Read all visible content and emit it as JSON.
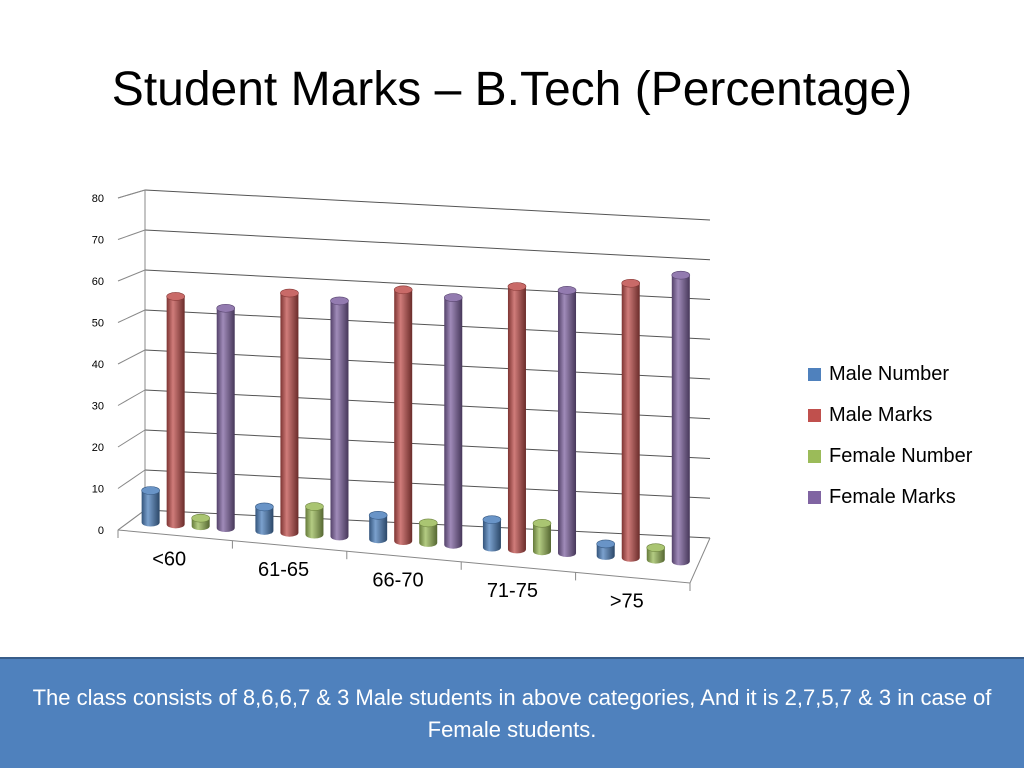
{
  "slide": {
    "title": "Student Marks – B.Tech (Percentage)",
    "caption": "The class consists of 8,6,6,7 & 3 Male students in above categories, And it is 2,7,5,7 & 3 in case of Female students."
  },
  "chart_data": {
    "type": "bar",
    "categories": [
      "<60",
      "61-65",
      "66-70",
      "71-75",
      ">75"
    ],
    "series": [
      {
        "name": "Male Number",
        "values": [
          8,
          6,
          6,
          7,
          3
        ],
        "color": "#4f81bd"
      },
      {
        "name": "Male Marks",
        "values": [
          57,
          60,
          63,
          66,
          69
        ],
        "color": "#c0504d"
      },
      {
        "name": "Female Number",
        "values": [
          2,
          7,
          5,
          7,
          3
        ],
        "color": "#9bbb59"
      },
      {
        "name": "Female Marks",
        "values": [
          55,
          59,
          62,
          66,
          72
        ],
        "color": "#8064a2"
      }
    ],
    "ylim": [
      0,
      80
    ],
    "yticks": [
      0,
      10,
      20,
      30,
      40,
      50,
      60,
      70,
      80
    ],
    "grid": true,
    "legend": "right",
    "style": "3d-cylinder"
  }
}
